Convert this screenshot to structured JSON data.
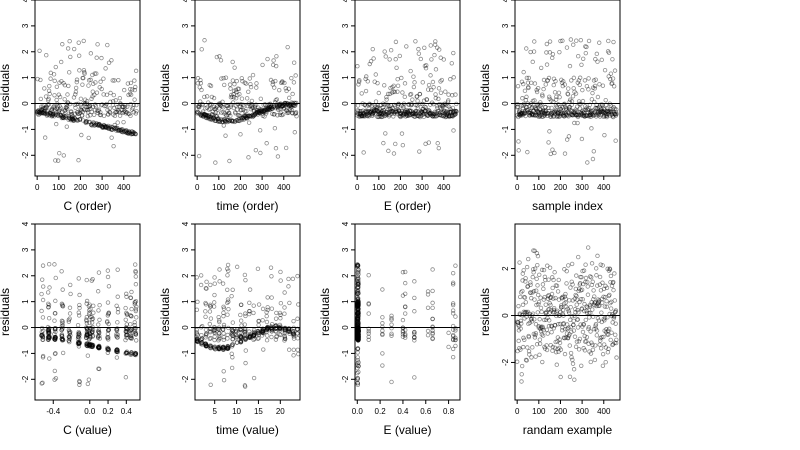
{
  "chart_data": [
    {
      "type": "scatter",
      "xlabel": "C (order)",
      "ylabel": "residuals",
      "xlim": [
        -10,
        475
      ],
      "ylim": [
        -2.8,
        4.0
      ],
      "xticks": [
        0,
        100,
        200,
        300,
        400
      ],
      "yticks": [
        -2,
        -1,
        0,
        1,
        2,
        3,
        4
      ],
      "hline": 0,
      "n": 460,
      "pattern": "order_c",
      "seed": 11
    },
    {
      "type": "scatter",
      "xlabel": "time (order)",
      "ylabel": "residuals",
      "xlim": [
        -10,
        475
      ],
      "ylim": [
        -2.8,
        4.0
      ],
      "xticks": [
        0,
        100,
        200,
        300,
        400
      ],
      "yticks": [
        -2,
        -1,
        0,
        1,
        2,
        3,
        4
      ],
      "hline": 0,
      "n": 460,
      "pattern": "order_time",
      "seed": 22
    },
    {
      "type": "scatter",
      "xlabel": "E (order)",
      "ylabel": "residuals",
      "xlim": [
        -10,
        475
      ],
      "ylim": [
        -2.8,
        4.0
      ],
      "xticks": [
        0,
        100,
        200,
        300,
        400
      ],
      "yticks": [
        -2,
        -1,
        0,
        1,
        2,
        3,
        4
      ],
      "hline": 0,
      "n": 460,
      "pattern": "order_e",
      "seed": 33
    },
    {
      "type": "scatter",
      "xlabel": "sample index",
      "ylabel": "residuals",
      "xlim": [
        -10,
        475
      ],
      "ylim": [
        -2.8,
        4.0
      ],
      "xticks": [
        0,
        100,
        200,
        300,
        400
      ],
      "yticks": [
        -2,
        -1,
        0,
        1,
        2,
        3,
        4
      ],
      "hline": 0,
      "n": 460,
      "pattern": "sample",
      "seed": 44
    },
    {
      "type": "scatter",
      "xlabel": "C (value)",
      "ylabel": "residuals",
      "xlim": [
        -0.6,
        0.55
      ],
      "ylim": [
        -2.8,
        4.0
      ],
      "xticks": [
        -0.4,
        0.0,
        0.2,
        0.4
      ],
      "xticklabels": [
        "-0.4",
        "0.0",
        "0.2",
        "0.4"
      ],
      "yticks": [
        -2,
        -1,
        0,
        1,
        2,
        3,
        4
      ],
      "hline": 0,
      "n": 460,
      "pattern": "value_c",
      "seed": 55
    },
    {
      "type": "scatter",
      "xlabel": "time (value)",
      "ylabel": "residuals",
      "xlim": [
        0.5,
        24.5
      ],
      "ylim": [
        -2.8,
        4.0
      ],
      "xticks": [
        5,
        10,
        15,
        20
      ],
      "yticks": [
        -2,
        -1,
        0,
        1,
        2,
        3,
        4
      ],
      "hline": 0,
      "n": 460,
      "pattern": "value_time",
      "seed": 66
    },
    {
      "type": "scatter",
      "xlabel": "E (value)",
      "ylabel": "residuals",
      "xlim": [
        -0.02,
        0.9
      ],
      "ylim": [
        -2.8,
        4.0
      ],
      "xticks": [
        0.0,
        0.2,
        0.4,
        0.6,
        0.8
      ],
      "xticklabels": [
        "0.0",
        "0.2",
        "0.4",
        "0.6",
        "0.8"
      ],
      "yticks": [
        -2,
        -1,
        0,
        1,
        2,
        3,
        4
      ],
      "hline": 0,
      "n": 460,
      "pattern": "value_e",
      "seed": 77
    },
    {
      "type": "scatter",
      "xlabel": "randam example",
      "ylabel": "residuals",
      "xlim": [
        -10,
        475
      ],
      "ylim": [
        -3.6,
        3.9
      ],
      "xticks": [
        0,
        100,
        200,
        300,
        400
      ],
      "yticks": [
        -2,
        0,
        2
      ],
      "hline": 0,
      "n": 460,
      "pattern": "random",
      "seed": 88
    }
  ]
}
